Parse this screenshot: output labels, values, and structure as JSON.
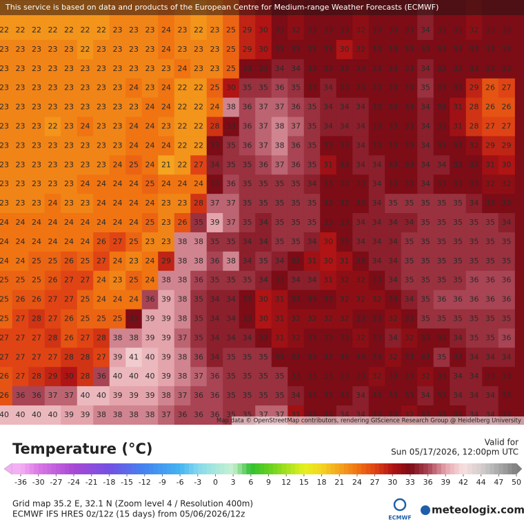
{
  "banner": "This service is based on data and products of the European Centre for Medium-range Weather Forecasts (ECMWF)",
  "attribution": "Map data © OpenStreetMap contributors, rendering GIScience Research Group @ Heidelberg University",
  "map": {
    "rows": [
      [
        22,
        22,
        22,
        22,
        22,
        22,
        22,
        23,
        23,
        23,
        24,
        23,
        22,
        23,
        25,
        29,
        30,
        33,
        32,
        33,
        33,
        33,
        32,
        33,
        33,
        33,
        34,
        33,
        33,
        32,
        33,
        33
      ],
      [
        23,
        23,
        23,
        23,
        23,
        22,
        23,
        23,
        23,
        23,
        24,
        23,
        23,
        23,
        25,
        29,
        30,
        33,
        33,
        33,
        33,
        30,
        32,
        33,
        33,
        33,
        33,
        33,
        33,
        33,
        33,
        33
      ],
      [
        23,
        23,
        23,
        23,
        23,
        23,
        23,
        23,
        23,
        23,
        23,
        24,
        23,
        23,
        25,
        33,
        33,
        34,
        34,
        33,
        33,
        33,
        33,
        33,
        33,
        33,
        34,
        33,
        33,
        33,
        33,
        33
      ],
      [
        23,
        23,
        23,
        23,
        23,
        23,
        23,
        23,
        24,
        23,
        24,
        22,
        22,
        25,
        30,
        35,
        35,
        36,
        35,
        33,
        34,
        33,
        33,
        33,
        33,
        33,
        35,
        33,
        33,
        29,
        26,
        27
      ],
      [
        23,
        23,
        23,
        23,
        23,
        23,
        23,
        23,
        23,
        24,
        24,
        22,
        22,
        24,
        38,
        36,
        37,
        37,
        36,
        35,
        34,
        34,
        34,
        33,
        33,
        33,
        34,
        33,
        31,
        28,
        26,
        26
      ],
      [
        23,
        23,
        23,
        22,
        23,
        24,
        23,
        23,
        24,
        24,
        23,
        22,
        22,
        28,
        33,
        36,
        37,
        38,
        37,
        35,
        34,
        34,
        34,
        33,
        33,
        33,
        34,
        33,
        31,
        28,
        27,
        27
      ],
      [
        23,
        23,
        23,
        23,
        23,
        23,
        23,
        23,
        24,
        24,
        24,
        22,
        22,
        33,
        35,
        36,
        37,
        38,
        36,
        35,
        33,
        33,
        34,
        33,
        33,
        33,
        34,
        33,
        33,
        32,
        29,
        29
      ],
      [
        23,
        23,
        23,
        23,
        23,
        23,
        23,
        24,
        25,
        24,
        21,
        22,
        27,
        34,
        35,
        35,
        36,
        37,
        36,
        35,
        31,
        33,
        34,
        34,
        33,
        33,
        34,
        34,
        33,
        33,
        31,
        30
      ],
      [
        23,
        23,
        23,
        23,
        23,
        24,
        24,
        24,
        24,
        25,
        24,
        24,
        24,
        33,
        36,
        35,
        35,
        35,
        35,
        34,
        33,
        33,
        33,
        34,
        33,
        33,
        34,
        33,
        33,
        33,
        32,
        32
      ],
      [
        23,
        23,
        23,
        24,
        23,
        23,
        24,
        24,
        24,
        24,
        23,
        23,
        28,
        37,
        37,
        35,
        35,
        35,
        35,
        35,
        33,
        33,
        33,
        34,
        35,
        35,
        35,
        35,
        35,
        34,
        33,
        33
      ],
      [
        24,
        24,
        24,
        24,
        24,
        24,
        24,
        24,
        24,
        25,
        23,
        26,
        35,
        39,
        37,
        35,
        34,
        35,
        35,
        35,
        33,
        33,
        34,
        34,
        34,
        34,
        35,
        35,
        35,
        35,
        35,
        34
      ],
      [
        24,
        24,
        24,
        24,
        24,
        24,
        26,
        27,
        25,
        23,
        23,
        38,
        38,
        35,
        35,
        34,
        34,
        35,
        35,
        34,
        30,
        33,
        34,
        34,
        34,
        35,
        35,
        35,
        35,
        35,
        35,
        35
      ],
      [
        24,
        24,
        25,
        25,
        26,
        25,
        27,
        24,
        23,
        24,
        29,
        38,
        38,
        36,
        38,
        34,
        35,
        34,
        33,
        31,
        30,
        31,
        33,
        34,
        34,
        35,
        35,
        35,
        35,
        35,
        35,
        35
      ],
      [
        25,
        25,
        25,
        26,
        27,
        27,
        24,
        23,
        25,
        24,
        38,
        38,
        36,
        35,
        35,
        35,
        34,
        33,
        34,
        34,
        31,
        32,
        32,
        33,
        34,
        35,
        35,
        35,
        35,
        36,
        36,
        36
      ],
      [
        25,
        26,
        26,
        27,
        27,
        25,
        24,
        24,
        24,
        36,
        39,
        38,
        35,
        34,
        34,
        33,
        30,
        31,
        33,
        33,
        33,
        32,
        32,
        32,
        33,
        34,
        35,
        36,
        36,
        36,
        36,
        36
      ],
      [
        25,
        27,
        28,
        27,
        26,
        25,
        25,
        25,
        33,
        39,
        39,
        38,
        35,
        34,
        34,
        33,
        30,
        31,
        32,
        32,
        32,
        32,
        33,
        33,
        32,
        33,
        35,
        35,
        35,
        35,
        35,
        35
      ],
      [
        27,
        27,
        27,
        28,
        26,
        27,
        28,
        38,
        38,
        39,
        39,
        37,
        35,
        34,
        34,
        34,
        33,
        31,
        32,
        33,
        33,
        33,
        32,
        33,
        34,
        32,
        33,
        33,
        34,
        35,
        35,
        36
      ],
      [
        27,
        27,
        27,
        27,
        28,
        28,
        27,
        39,
        41,
        40,
        39,
        38,
        36,
        34,
        35,
        35,
        35,
        33,
        33,
        33,
        33,
        33,
        33,
        33,
        32,
        33,
        33,
        35,
        33,
        34,
        34,
        34
      ],
      [
        26,
        27,
        28,
        29,
        30,
        28,
        36,
        40,
        40,
        40,
        39,
        38,
        37,
        36,
        35,
        35,
        35,
        35,
        33,
        33,
        33,
        33,
        33,
        32,
        33,
        33,
        32,
        33,
        34,
        34,
        33,
        33
      ],
      [
        26,
        36,
        36,
        37,
        37,
        40,
        40,
        39,
        39,
        39,
        38,
        37,
        36,
        36,
        35,
        35,
        35,
        35,
        34,
        33,
        33,
        33,
        34,
        33,
        33,
        33,
        34,
        33,
        34,
        34,
        34,
        33
      ],
      [
        40,
        40,
        40,
        40,
        39,
        39,
        38,
        38,
        38,
        38,
        37,
        36,
        36,
        36,
        35,
        35,
        37,
        37,
        31,
        33,
        33,
        34,
        34,
        33,
        33,
        32,
        33,
        33,
        33,
        34,
        34,
        33
      ]
    ]
  },
  "panel": {
    "title": "Temperature (°C)",
    "valid_label": "Valid for",
    "valid_time": "Sun 05/17/2026, 12:00pm UTC",
    "colorbar": {
      "ticks": [
        -36,
        -30,
        -27,
        -24,
        -21,
        -18,
        -15,
        -12,
        -9,
        -6,
        -3,
        0,
        3,
        6,
        9,
        12,
        15,
        18,
        21,
        24,
        27,
        30,
        33,
        36,
        39,
        42,
        44,
        47,
        50
      ],
      "palette": [
        [
          -36,
          "#f4b0f4"
        ],
        [
          -30,
          "#d878e4"
        ],
        [
          -24,
          "#a848d4"
        ],
        [
          -18,
          "#7450e4"
        ],
        [
          -12,
          "#4484f0"
        ],
        [
          -6,
          "#44b4f0"
        ],
        [
          -3,
          "#84d8ec"
        ],
        [
          0,
          "#a8e8dc"
        ],
        [
          3,
          "#c8f0d0"
        ],
        [
          6,
          "#30c030"
        ],
        [
          9,
          "#64d020"
        ],
        [
          12,
          "#a4e020"
        ],
        [
          15,
          "#e4f020"
        ],
        [
          18,
          "#f4d420"
        ],
        [
          21,
          "#f4a420"
        ],
        [
          24,
          "#f07412"
        ],
        [
          27,
          "#e04414"
        ],
        [
          30,
          "#b01414"
        ],
        [
          33,
          "#7c0c16"
        ],
        [
          36,
          "#a84454"
        ],
        [
          39,
          "#e4a4ac"
        ],
        [
          42,
          "#f8e0e0"
        ],
        [
          45,
          "#c4c4c4"
        ],
        [
          50,
          "#808080"
        ]
      ]
    },
    "grid_info": "Grid map 35.2 E, 32.1 N (Zoom level 4 / Resolution 400m)",
    "model_info": "ECMWF IFS HRES 0z/12z (15 days) from 05/06/2026/12z",
    "logo_ecmwf": "ECMWF",
    "logo_site": "meteologix.com"
  }
}
